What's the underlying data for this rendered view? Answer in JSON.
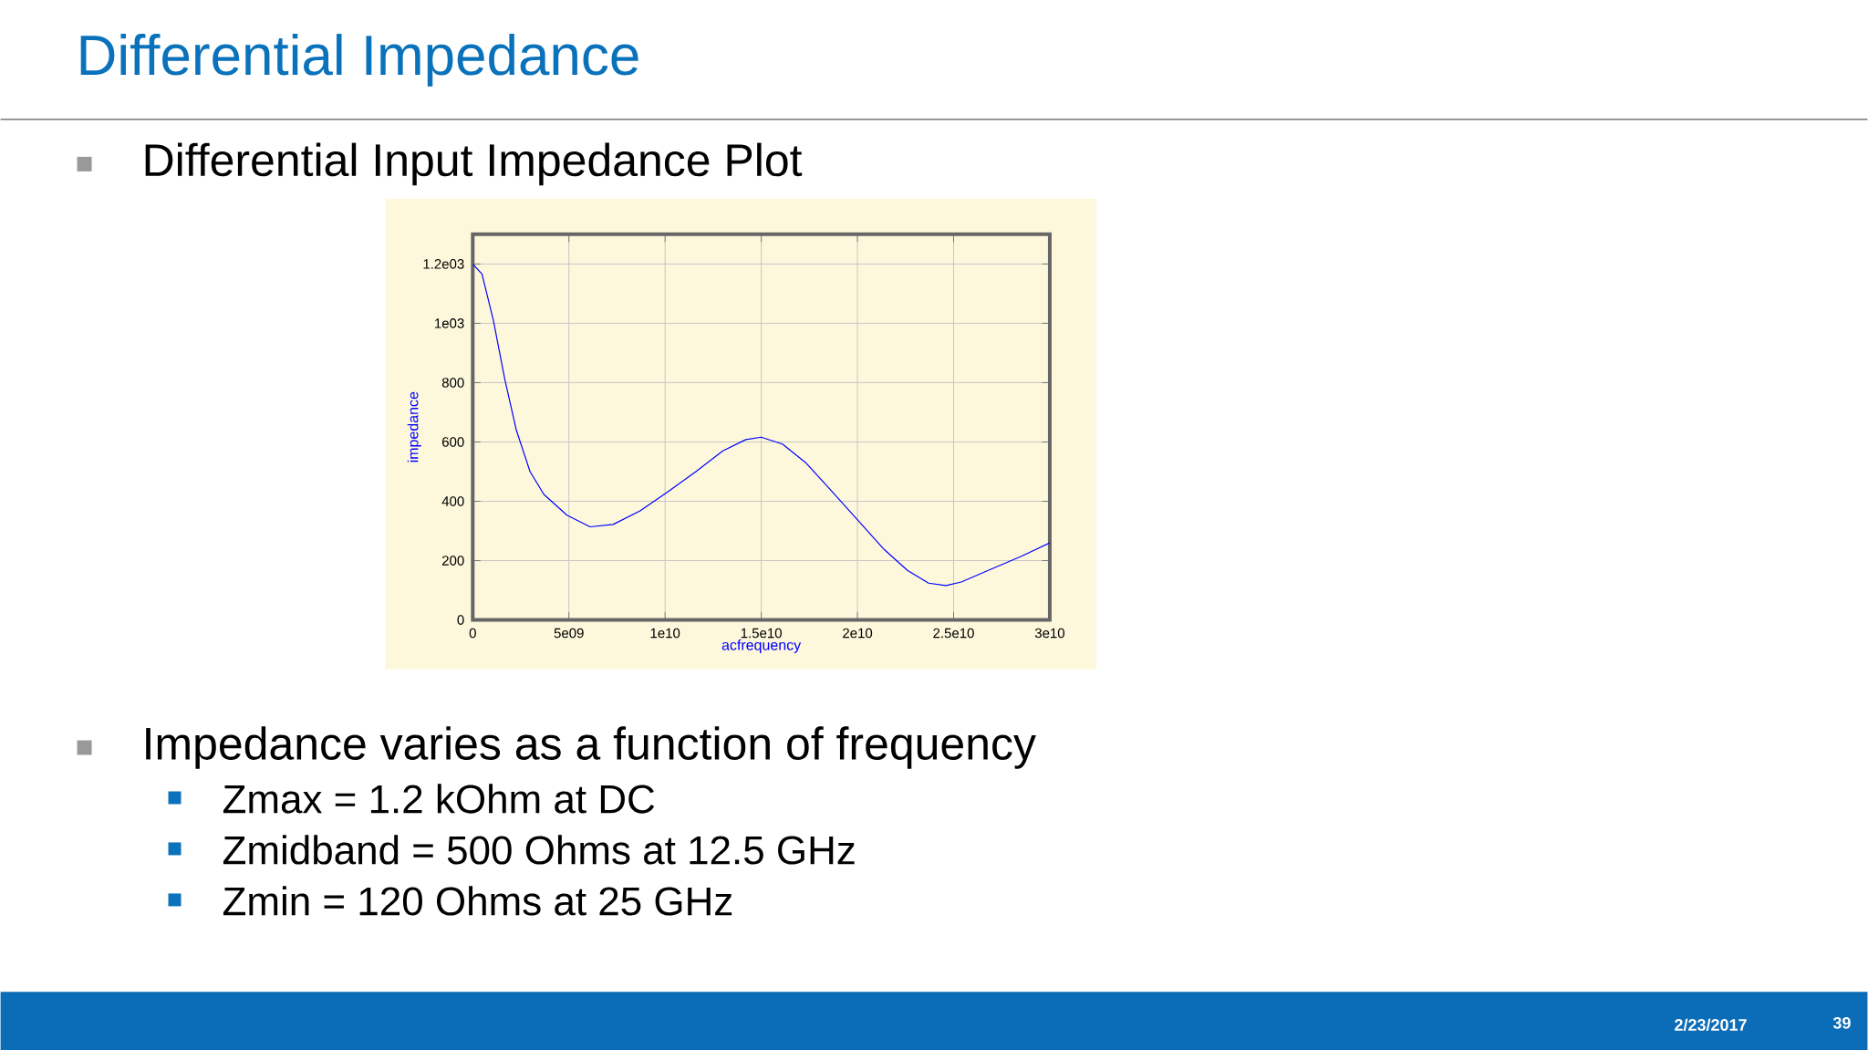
{
  "chart_data": {
    "type": "line",
    "title": "Differential Impedance",
    "subtitle": "Differential Input Impedance Plot",
    "xlabel": "acfrequency",
    "ylabel": "impedance",
    "annotations": [
      "Impedance varies as a function of frequency",
      "Zmax = 1.2 kOhm at DC",
      "Zmidband = 500 Ohms at 12.5 GHz",
      "Zmin = 120 Ohms at 25 GHz",
      "2/23/2017",
      "39"
    ],
    "x": [
      0,
      480000000,
      1070000000,
      1670000000,
      2270000000,
      2980000000,
      3700000000,
      4900000000,
      6100000000,
      7300000000,
      8700000000,
      10100000000,
      11600000000,
      13000000000,
      14200000000,
      15000000000,
      16100000000,
      17300000000,
      18500000000,
      19900000000,
      21400000000,
      22600000000,
      23700000000,
      24600000000,
      25400000000,
      26800000000,
      28500000000,
      30000000000
    ],
    "series": [
      {
        "color": "#0000ff",
        "values": [
          1200,
          1166,
          1011,
          810,
          639,
          500,
          423,
          353,
          314,
          322,
          368,
          430,
          500,
          570,
          608,
          616,
          593,
          531,
          446,
          345,
          237,
          167,
          124,
          116,
          128,
          167,
          214,
          260
        ]
      }
    ],
    "xlim": [
      0,
      30000000000
    ],
    "ylim": [
      0,
      1300
    ],
    "xticks": [
      0,
      {
        "value": 5000000000,
        "label": "5e09"
      },
      {
        "value": 10000000000,
        "label": "1e10"
      },
      {
        "value": 15000000000,
        "label": "1.5e10"
      },
      {
        "value": 20000000000,
        "label": "2e10"
      },
      {
        "value": 25000000000,
        "label": "2.5e10"
      },
      {
        "value": 30000000000,
        "label": "3e10"
      }
    ],
    "yticks": [
      0,
      200,
      400,
      600,
      800,
      {
        "value": 1000,
        "label": "1e03"
      },
      {
        "value": 1200,
        "label": "1.2e03"
      }
    ],
    "grid": true,
    "marker": "none",
    "line_style": "solid"
  }
}
